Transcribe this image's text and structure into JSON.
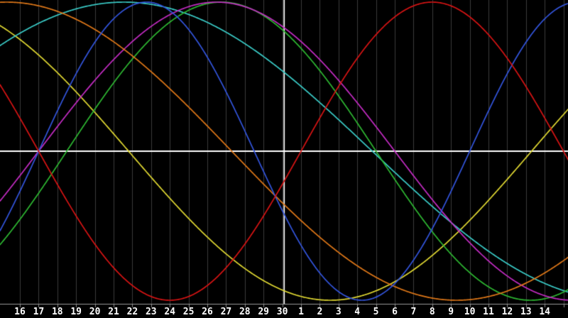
{
  "colors": {
    "background": "#000000",
    "grid": "#3b3b3b",
    "axis_line": "#9a9a9a",
    "tick": "#8a8a8a",
    "zero_line": "#ffffff",
    "today_line": "#ffffff",
    "label_text": "#ffffff"
  },
  "chart_data": {
    "type": "line",
    "title": "",
    "xlabel": "",
    "ylabel": "",
    "x_unit": "day of month",
    "x_labels": [
      "16",
      "17",
      "18",
      "19",
      "20",
      "21",
      "22",
      "23",
      "24",
      "25",
      "26",
      "27",
      "28",
      "29",
      "30",
      "1",
      "2",
      "3",
      "4",
      "5",
      "6",
      "7",
      "8",
      "9",
      "10",
      "11",
      "12",
      "13",
      "14"
    ],
    "today_label": "30",
    "today_index": 14,
    "ylim": [
      -1,
      1
    ],
    "grid": true,
    "zero_line": true,
    "legend": "none",
    "series": [
      {
        "name": "yellow-cycle",
        "color": "#e0d832",
        "period_days": 43,
        "ascending_zero_day": -15.7,
        "amplitude": 1
      },
      {
        "name": "cyan-cycle",
        "color": "#3accc8",
        "period_days": 53,
        "ascending_zero_day": -7.7,
        "amplitude": 1
      },
      {
        "name": "green-cycle",
        "color": "#2eb832",
        "period_days": 33,
        "ascending_zero_day": 2.5,
        "amplitude": 1
      },
      {
        "name": "magenta-cycle",
        "color": "#c42cc4",
        "period_days": 38,
        "ascending_zero_day": 1.0,
        "amplitude": 1
      },
      {
        "name": "orange-cycle",
        "color": "#e07818",
        "period_days": 48,
        "ascending_zero_day": -12.7,
        "amplitude": 1
      },
      {
        "name": "blue-cycle",
        "color": "#3355dd",
        "period_days": 23,
        "ascending_zero_day": 1.0,
        "amplitude": 1
      },
      {
        "name": "red-cycle",
        "color": "#d81414",
        "period_days": 28,
        "ascending_zero_day": 15.0,
        "amplitude": 1
      }
    ]
  }
}
